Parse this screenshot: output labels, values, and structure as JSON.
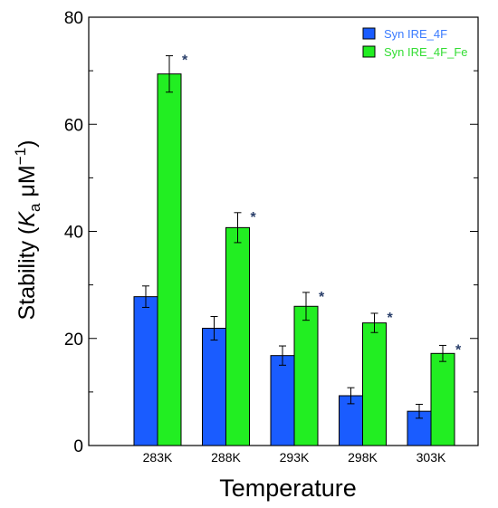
{
  "colors": {
    "series_blue": "#1a5cff",
    "series_green": "#22ee22",
    "legend_blue_text": "#3a7bff",
    "legend_green_text": "#33dd33",
    "star": "#2a3f6a"
  },
  "chart_data": {
    "type": "bar",
    "categories": [
      "283K",
      "288K",
      "293K",
      "298K",
      "303K"
    ],
    "series": [
      {
        "name": "Syn IRE_4F",
        "values": [
          27.8,
          21.9,
          16.8,
          9.3,
          6.4
        ],
        "errors": [
          2.0,
          2.2,
          1.8,
          1.5,
          1.3
        ],
        "marks": [
          "",
          "",
          "",
          "",
          ""
        ]
      },
      {
        "name": "Syn IRE_4F_Fe",
        "values": [
          69.4,
          40.7,
          26.0,
          22.9,
          17.2
        ],
        "errors": [
          3.4,
          2.8,
          2.6,
          1.8,
          1.5
        ],
        "marks": [
          "*",
          "*",
          "*",
          "*",
          "*"
        ]
      }
    ],
    "xlabel": "Temperature",
    "ylabel": {
      "prefix": "Stability (",
      "italic": "K",
      "sub": "a",
      "unit": " μM",
      "sup": "−1",
      "suffix": ")"
    },
    "ylim": [
      0,
      80
    ],
    "y_ticks": [
      "0",
      "20",
      "40",
      "60",
      "80"
    ],
    "y_minor_step": 10,
    "grid": false,
    "legend_position": "top-right"
  }
}
